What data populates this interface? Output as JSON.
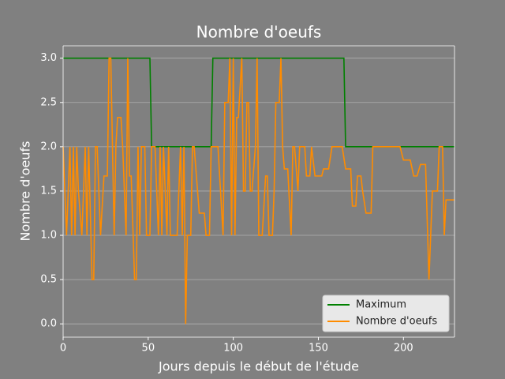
{
  "chart_data": {
    "type": "line",
    "title": "Nombre d'oeufs",
    "x_label": "Jours depuis le début de l'étude",
    "y_label": "Nombre d'oeufs",
    "xlim": [
      0,
      230
    ],
    "ylim": [
      -0.15,
      3.14
    ],
    "xticks": [
      0,
      50,
      100,
      150,
      200
    ],
    "yticks": [
      {
        "value": 0,
        "label": "0.0"
      },
      {
        "value": 0.5,
        "label": "0.5"
      },
      {
        "value": 1,
        "label": "1.0"
      },
      {
        "value": 1.5,
        "label": "1.5"
      },
      {
        "value": 2,
        "label": "2.0"
      },
      {
        "value": 2.5,
        "label": "2.5"
      },
      {
        "value": 3,
        "label": "3.0"
      }
    ],
    "grid": "y",
    "legend": "lower right",
    "series": [
      {
        "name": "Maximum",
        "color": "#008000",
        "x": [
          0,
          51,
          52,
          87,
          88,
          165,
          166,
          230
        ],
        "values": [
          3,
          3,
          2,
          2,
          3,
          3,
          2,
          2
        ]
      },
      {
        "name": "Nombre d'oeufs",
        "color": "#ff8c00",
        "x": [
          0,
          2,
          4,
          5,
          6,
          7,
          8,
          9,
          11,
          13,
          14,
          15,
          17,
          18,
          19,
          20,
          22,
          24,
          26,
          27,
          28,
          30,
          31,
          32,
          34,
          35,
          37,
          38,
          39,
          40,
          42,
          43,
          44,
          45,
          46,
          48,
          49,
          51,
          52,
          54,
          56,
          57,
          58,
          59,
          60,
          61,
          62,
          63,
          65,
          67,
          69,
          70,
          71,
          72,
          73,
          75,
          76,
          77,
          79,
          80,
          83,
          84,
          86,
          87,
          91,
          94,
          95,
          97,
          98,
          99,
          100,
          101,
          102,
          103,
          105,
          106,
          107,
          108,
          109,
          110,
          111,
          113,
          114,
          115,
          116,
          117,
          119,
          120,
          121,
          123,
          124,
          125,
          127,
          128,
          129,
          130,
          132,
          134,
          135,
          136,
          138,
          139,
          142,
          143,
          145,
          146,
          148,
          152,
          153,
          156,
          158,
          164,
          166,
          169,
          170,
          172,
          173,
          175,
          176,
          178,
          181,
          182,
          198,
          200,
          204,
          206,
          208,
          210,
          213,
          215,
          216,
          217,
          220,
          221,
          223,
          224,
          225,
          230
        ],
        "values": [
          2,
          1,
          2,
          1,
          2,
          1,
          2,
          1.5,
          1,
          2,
          1,
          2,
          0.5,
          0.5,
          2,
          2,
          1,
          1.67,
          1.67,
          3,
          3,
          1,
          2,
          2.33,
          2.33,
          2,
          1,
          3,
          1.67,
          1.67,
          0.5,
          0.5,
          2,
          1,
          2,
          2,
          1,
          1,
          2,
          2,
          1,
          2,
          1,
          2,
          1.5,
          1,
          2,
          1,
          1,
          1,
          2,
          1,
          2,
          0,
          1,
          1,
          2,
          2,
          1.5,
          1.25,
          1.25,
          1,
          1,
          2,
          2,
          1,
          2.5,
          2.5,
          3,
          1,
          3,
          1,
          2.33,
          2.33,
          3,
          1.5,
          1.5,
          2.5,
          2.5,
          1.5,
          1.5,
          2,
          3,
          1,
          1,
          1,
          1.67,
          1.67,
          1,
          1,
          1.5,
          2.5,
          2.5,
          3,
          2,
          1.75,
          1.75,
          1,
          2,
          2,
          1.5,
          2,
          2,
          1.67,
          1.67,
          2,
          1.67,
          1.67,
          1.75,
          1.75,
          2,
          2,
          1.75,
          1.75,
          1.33,
          1.33,
          1.67,
          1.67,
          1.5,
          1.25,
          1.25,
          2,
          2,
          1.85,
          1.85,
          1.67,
          1.67,
          1.8,
          1.8,
          0.5,
          1,
          1.5,
          1.5,
          2,
          2,
          1,
          1.4,
          1.4
        ]
      }
    ]
  }
}
